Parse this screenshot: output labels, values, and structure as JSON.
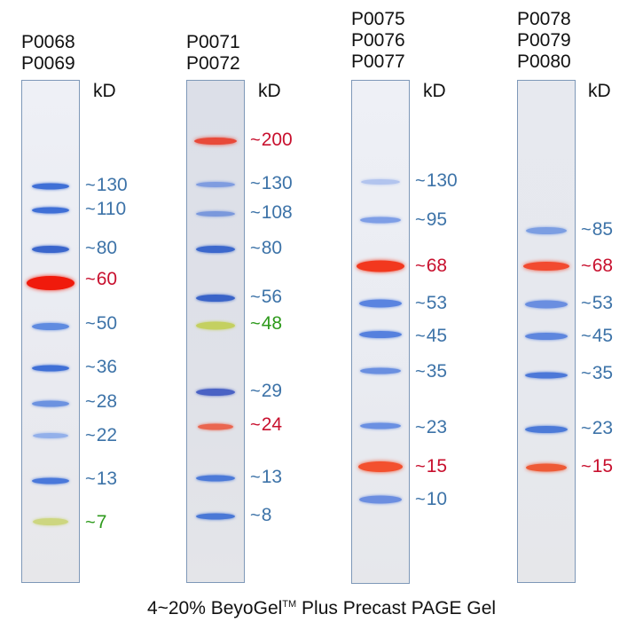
{
  "kd_label": "kD",
  "footer": {
    "prefix": "4~20% BeyoGel",
    "tm": "TM",
    "suffix": " Plus Precast PAGE Gel"
  },
  "colors": {
    "blue_label": "#3d73a8",
    "red_label": "#c8102e",
    "green_label": "#2e9a1c",
    "blue_band": "#3f6fd6",
    "red_band": "#f22a1a",
    "green_band": "#c4d060",
    "lane_border": "#7e98b8"
  },
  "lanes": [
    {
      "header": "P0068\nP0069",
      "bands": [
        {
          "label": "130",
          "color": "blue"
        },
        {
          "label": "110",
          "color": "blue"
        },
        {
          "label": "80",
          "color": "blue"
        },
        {
          "label": "60",
          "color": "red"
        },
        {
          "label": "50",
          "color": "blue"
        },
        {
          "label": "36",
          "color": "blue"
        },
        {
          "label": "28",
          "color": "blue"
        },
        {
          "label": "22",
          "color": "blue"
        },
        {
          "label": "13",
          "color": "blue"
        },
        {
          "label": "7",
          "color": "green"
        }
      ]
    },
    {
      "header": "P0071\nP0072",
      "bands": [
        {
          "label": "200",
          "color": "red"
        },
        {
          "label": "130",
          "color": "blue"
        },
        {
          "label": "108",
          "color": "blue"
        },
        {
          "label": "80",
          "color": "blue"
        },
        {
          "label": "56",
          "color": "blue"
        },
        {
          "label": "48",
          "color": "green"
        },
        {
          "label": "29",
          "color": "blue"
        },
        {
          "label": "24",
          "color": "red"
        },
        {
          "label": "13",
          "color": "blue"
        },
        {
          "label": "8",
          "color": "blue"
        }
      ]
    },
    {
      "header": "P0075\nP0076\nP0077",
      "bands": [
        {
          "label": "130",
          "color": "blue"
        },
        {
          "label": "95",
          "color": "blue"
        },
        {
          "label": "68",
          "color": "red"
        },
        {
          "label": "53",
          "color": "blue"
        },
        {
          "label": "45",
          "color": "blue"
        },
        {
          "label": "35",
          "color": "blue"
        },
        {
          "label": "23",
          "color": "blue"
        },
        {
          "label": "15",
          "color": "red"
        },
        {
          "label": "10",
          "color": "blue"
        }
      ]
    },
    {
      "header": "P0078\nP0079\nP0080",
      "bands": [
        {
          "label": "85",
          "color": "blue"
        },
        {
          "label": "68",
          "color": "red"
        },
        {
          "label": "53",
          "color": "blue"
        },
        {
          "label": "45",
          "color": "blue"
        },
        {
          "label": "35",
          "color": "blue"
        },
        {
          "label": "23",
          "color": "blue"
        },
        {
          "label": "15",
          "color": "red"
        }
      ]
    }
  ]
}
